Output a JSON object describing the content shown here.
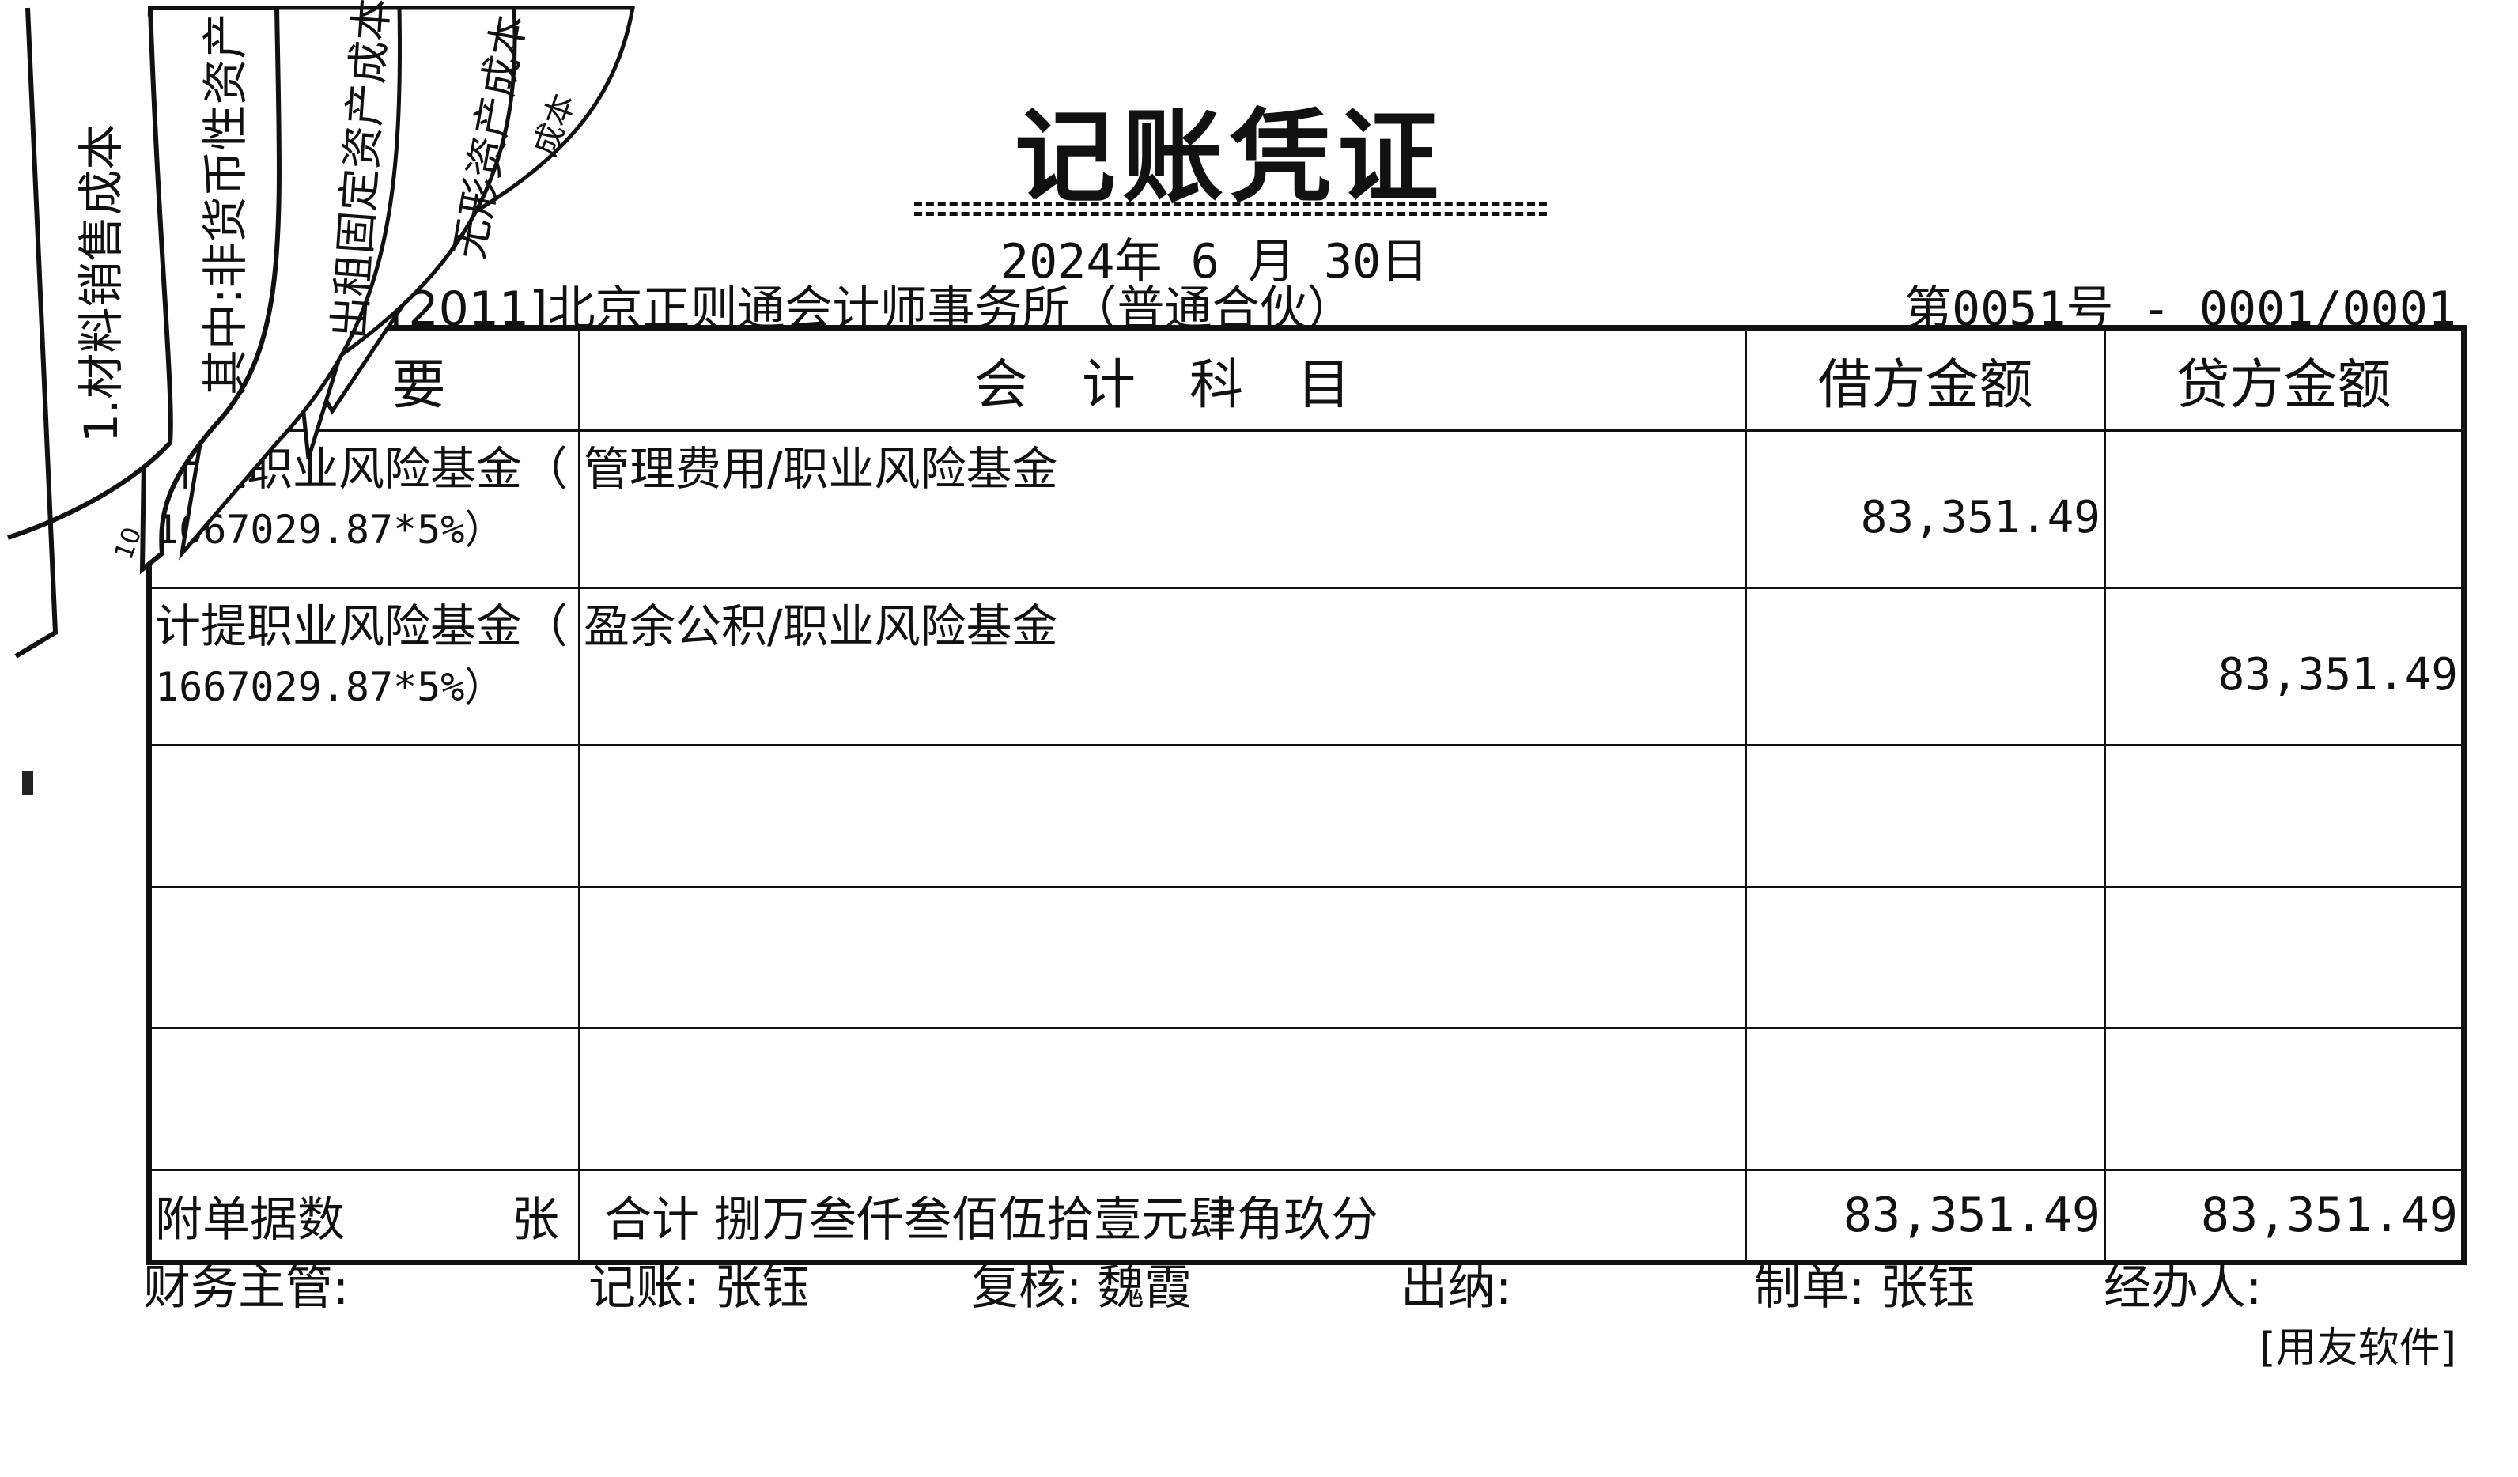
{
  "voucher": {
    "title": "记账凭证",
    "date": "2024年 6 月 30日",
    "company": "[2011]北京正则通会计师事务所（普通合伙）",
    "voucher_no": "第0051号 - 0001/0001",
    "headers": {
      "summary": "摘　要",
      "account": "会　计　科　目",
      "debit": "借方金额",
      "credit": "贷方金额"
    },
    "rows": [
      {
        "summary_1": "计提职业风险基金（",
        "summary_2": "1667029.87*5%）",
        "account": "管理费用/职业风险基金",
        "debit": "83,351.49",
        "credit": ""
      },
      {
        "summary_1": "计提职业风险基金（",
        "summary_2": "1667029.87*5%）",
        "account": "盈余公积/职业风险基金",
        "debit": "",
        "credit": "83,351.49"
      },
      {
        "summary_1": "",
        "summary_2": "",
        "account": "",
        "debit": "",
        "credit": ""
      },
      {
        "summary_1": "",
        "summary_2": "",
        "account": "",
        "debit": "",
        "credit": ""
      },
      {
        "summary_1": "",
        "summary_2": "",
        "account": "",
        "debit": "",
        "credit": ""
      }
    ],
    "total": {
      "attachments_label": "附单据数",
      "attachments_unit": "张",
      "label": "合计",
      "amount_words": "捌万叁仟叁佰伍拾壹元肆角玖分",
      "debit": "83,351.49",
      "credit": "83,351.49"
    },
    "signatures": {
      "supervisor": "财务主管:",
      "bookkeeper": "记账: 张钰",
      "reviewer": "复核: 魏霞",
      "cashier": "出纳:",
      "preparer": "制单: 张钰",
      "handler": "经办人:"
    },
    "software": "[用友软件]"
  },
  "tabs": [
    "1.材料销售成本",
    "其中:非货币性资产",
    "出租固定资产成本",
    "无形资产成本",
    "成本"
  ],
  "tab_note": "10"
}
